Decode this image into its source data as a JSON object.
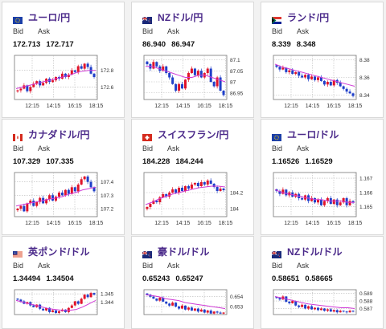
{
  "labels": {
    "bid": "Bid",
    "ask": "Ask"
  },
  "colors": {
    "pair_title": "#4b2a8a",
    "candle_up": "#e0142a",
    "candle_down": "#1f3fc9",
    "moving_average": "#d03ad6",
    "grid": "#b8b8b8"
  },
  "cards": [
    {
      "pair": "ユーロ/円",
      "flag": "eu-flag-icon",
      "bid": "172.713",
      "ask": "172.717",
      "chart_data": {
        "type": "candlestick",
        "x_ticks": [
          "12:15",
          "14:15",
          "16:15",
          "18:15"
        ],
        "y_ticks": [
          "172.8",
          "172.6"
        ],
        "ylim": [
          172.45,
          172.98
        ],
        "closes": [
          172.56,
          172.58,
          172.62,
          172.55,
          172.6,
          172.64,
          172.67,
          172.62,
          172.65,
          172.7,
          172.66,
          172.68,
          172.72,
          172.7,
          172.76,
          172.72,
          172.75,
          172.8,
          172.78,
          172.85,
          172.82,
          172.88,
          172.84,
          172.76,
          172.72
        ],
        "ma": [
          172.58,
          172.6,
          172.62,
          172.64,
          172.66,
          172.68,
          172.7,
          172.72,
          172.74,
          172.77,
          172.79,
          172.8,
          172.8
        ]
      }
    },
    {
      "pair": "NZドル/円",
      "flag": "nz-flag-icon",
      "bid": "86.940",
      "ask": "86.947",
      "chart_data": {
        "type": "candlestick",
        "x_ticks": [
          "12:15",
          "14:15",
          "16:15",
          "18:15"
        ],
        "y_ticks": [
          "87.1",
          "87.05",
          "87",
          "86.95"
        ],
        "ylim": [
          86.92,
          87.12
        ],
        "closes": [
          87.08,
          87.06,
          87.09,
          87.07,
          87.05,
          87.07,
          87.04,
          87.02,
          86.99,
          86.96,
          86.99,
          86.97,
          87.01,
          87.04,
          87.06,
          87.03,
          87.05,
          87.02,
          87.04,
          87.06,
          87.0,
          86.98,
          87.02,
          86.96,
          86.94
        ],
        "ma": [
          87.07,
          87.07,
          87.06,
          87.05,
          87.04,
          87.03,
          87.02,
          87.02,
          87.03,
          87.03,
          87.02,
          87.01,
          87.0
        ]
      }
    },
    {
      "pair": "ランド/円",
      "flag": "za-flag-icon",
      "bid": "8.339",
      "ask": "8.348",
      "chart_data": {
        "type": "candlestick",
        "x_ticks": [
          "12:15",
          "14:15",
          "16:15",
          "18:15"
        ],
        "y_ticks": [
          "8.38",
          "8.36",
          "8.34"
        ],
        "ylim": [
          8.335,
          8.385
        ],
        "closes": [
          8.372,
          8.369,
          8.371,
          8.366,
          8.368,
          8.364,
          8.366,
          8.362,
          8.36,
          8.363,
          8.358,
          8.361,
          8.357,
          8.36,
          8.356,
          8.352,
          8.355,
          8.351,
          8.357,
          8.354,
          8.35,
          8.347,
          8.344,
          8.342,
          8.339
        ],
        "ma": [
          8.375,
          8.372,
          8.37,
          8.368,
          8.366,
          8.364,
          8.362,
          8.36,
          8.358,
          8.356,
          8.354,
          8.352,
          8.35
        ]
      }
    },
    {
      "pair": "カナダドル/円",
      "flag": "ca-flag-icon",
      "bid": "107.329",
      "ask": "107.335",
      "chart_data": {
        "type": "candlestick",
        "x_ticks": [
          "12:15",
          "14:15",
          "16:15",
          "18:15"
        ],
        "y_ticks": [
          "107.4",
          "107.3",
          "107.2"
        ],
        "ylim": [
          107.14,
          107.47
        ],
        "closes": [
          107.2,
          107.22,
          107.18,
          107.24,
          107.26,
          107.22,
          107.25,
          107.28,
          107.24,
          107.27,
          107.3,
          107.26,
          107.29,
          107.32,
          107.3,
          107.34,
          107.31,
          107.36,
          107.33,
          107.38,
          107.42,
          107.44,
          107.4,
          107.36,
          107.33
        ],
        "ma": [
          107.22,
          107.23,
          107.24,
          107.25,
          107.26,
          107.27,
          107.28,
          107.29,
          107.31,
          107.32,
          107.34,
          107.35,
          107.36
        ]
      }
    },
    {
      "pair": "スイスフラン/円",
      "flag": "ch-flag-icon",
      "bid": "184.228",
      "ask": "184.244",
      "chart_data": {
        "type": "candlestick",
        "x_ticks": [
          "12:15",
          "14:15",
          "16:15",
          "18:15"
        ],
        "y_ticks": [
          "184.2",
          "184"
        ],
        "ylim": [
          183.9,
          184.45
        ],
        "closes": [
          184.02,
          184.06,
          184.1,
          184.08,
          184.14,
          184.18,
          184.15,
          184.2,
          184.24,
          184.2,
          184.26,
          184.22,
          184.28,
          184.25,
          184.3,
          184.32,
          184.28,
          184.33,
          184.3,
          184.35,
          184.31,
          184.27,
          184.22,
          184.25,
          184.23
        ],
        "ma": [
          184.05,
          184.08,
          184.12,
          184.15,
          184.18,
          184.2,
          184.22,
          184.24,
          184.26,
          184.27,
          184.28,
          184.28,
          184.27
        ]
      }
    },
    {
      "pair": "ユーロ/ドル",
      "flag": "eu-flag-icon",
      "bid": "1.16526",
      "ask": "1.16529",
      "chart_data": {
        "type": "candlestick",
        "x_ticks": [
          "12:15",
          "14:15",
          "16:15",
          "18:15"
        ],
        "y_ticks": [
          "1.167",
          "1.166",
          "1.165"
        ],
        "ylim": [
          1.1643,
          1.1674
        ],
        "closes": [
          1.1661,
          1.1659,
          1.1662,
          1.1658,
          1.166,
          1.1657,
          1.1659,
          1.1656,
          1.1655,
          1.1658,
          1.1654,
          1.1656,
          1.1653,
          1.1655,
          1.1651,
          1.1654,
          1.1656,
          1.1652,
          1.1655,
          1.1651,
          1.1653,
          1.1656,
          1.1651,
          1.1654,
          1.1653
        ],
        "ma": [
          1.1662,
          1.166,
          1.1659,
          1.1658,
          1.1657,
          1.1656,
          1.1655,
          1.1655,
          1.1654,
          1.1654,
          1.1654,
          1.1653,
          1.1653
        ]
      }
    },
    {
      "pair": "英ポンド/ドル",
      "flag": "uk-flag-icon",
      "bid": "1.34494",
      "ask": "1.34504",
      "chart_data": {
        "type": "candlestick",
        "x_ticks": [],
        "y_ticks": [
          "1.345",
          "1.344"
        ],
        "ylim": [
          1.3425,
          1.3455
        ],
        "closes": [
          1.3443,
          1.3441,
          1.3438,
          1.344,
          1.3436,
          1.3434,
          1.3437,
          1.3432,
          1.343,
          1.3433,
          1.3428,
          1.343,
          1.3427,
          1.3429,
          1.3431,
          1.3428,
          1.3433,
          1.3436,
          1.3441,
          1.3438,
          1.3444,
          1.3449,
          1.3446,
          1.3451,
          1.3449
        ],
        "ma": [
          1.3442,
          1.344,
          1.3438,
          1.3436,
          1.3434,
          1.3432,
          1.3431,
          1.343,
          1.343,
          1.3431,
          1.3434,
          1.3438,
          1.3442
        ]
      }
    },
    {
      "pair": "豪ドル/ドル",
      "flag": "au-flag-icon",
      "bid": "0.65243",
      "ask": "0.65247",
      "chart_data": {
        "type": "candlestick",
        "x_ticks": [],
        "y_ticks": [
          "0.654",
          "0.653"
        ],
        "ylim": [
          0.6522,
          0.6547
        ],
        "closes": [
          0.6542,
          0.654,
          0.6538,
          0.6536,
          0.6539,
          0.6535,
          0.6533,
          0.6531,
          0.6534,
          0.653,
          0.6528,
          0.6531,
          0.6527,
          0.6529,
          0.6526,
          0.6528,
          0.6525,
          0.6527,
          0.6524,
          0.6526,
          0.6523,
          0.6525,
          0.6524,
          0.6523,
          0.6524
        ],
        "ma": [
          0.6542,
          0.6541,
          0.654,
          0.6538,
          0.6537,
          0.6536,
          0.6534,
          0.6533,
          0.6532,
          0.6531,
          0.653,
          0.6529,
          0.6528
        ]
      }
    },
    {
      "pair": "NZドル/ドル",
      "flag": "nz-flag-icon",
      "bid": "0.58651",
      "ask": "0.58665",
      "chart_data": {
        "type": "candlestick",
        "x_ticks": [],
        "y_ticks": [
          "0.589",
          "0.588",
          "0.587"
        ],
        "ylim": [
          0.5862,
          0.5895
        ],
        "closes": [
          0.5884,
          0.5882,
          0.5886,
          0.5879,
          0.5877,
          0.588,
          0.5874,
          0.5872,
          0.5875,
          0.587,
          0.5873,
          0.5869,
          0.5871,
          0.5868,
          0.587,
          0.5867,
          0.5869,
          0.5866,
          0.5868,
          0.5865,
          0.5867,
          0.5866,
          0.5865,
          0.5867,
          0.5866
        ],
        "ma": [
          0.5886,
          0.5884,
          0.5882,
          0.588,
          0.5878,
          0.5876,
          0.5875,
          0.5874,
          0.5873,
          0.5872,
          0.5871,
          0.5871,
          0.587
        ]
      }
    }
  ]
}
